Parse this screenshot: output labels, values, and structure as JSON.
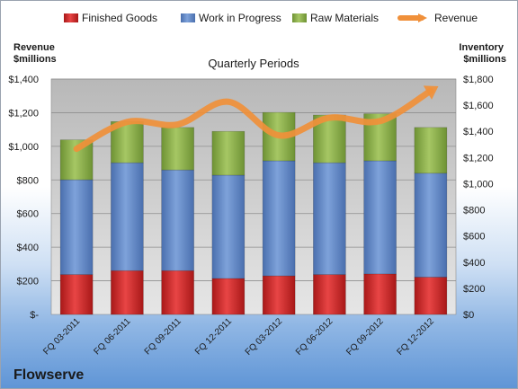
{
  "chart_data": {
    "type": "bar",
    "stacked": true,
    "title": "Quarterly Periods",
    "ylabel_left": "Revenue\n$millions",
    "ylabel_right": "Inventory\n$millions",
    "company": "Flowserve",
    "categories": [
      "FQ 03-2011",
      "FQ 06-2011",
      "FQ 09-2011",
      "FQ 12-2011",
      "FQ 03-2012",
      "FQ 06-2012",
      "FQ 09-2012",
      "FQ 12-2012"
    ],
    "ylim_left": [
      0,
      1400
    ],
    "ylim_right": [
      0,
      1800
    ],
    "left_ticks": [
      "$-",
      "$200",
      "$400",
      "$600",
      "$800",
      "$1,000",
      "$1,200",
      "$1,400"
    ],
    "right_ticks": [
      "$0",
      "$200",
      "$400",
      "$600",
      "$800",
      "$1,000",
      "$1,200",
      "$1,400",
      "$1,600",
      "$1,800"
    ],
    "grid": true,
    "legend_position": "top",
    "series": [
      {
        "name": "Finished Goods",
        "axis": "right",
        "color": "#d42a2a",
        "values": [
          305,
          335,
          335,
          275,
          295,
          305,
          310,
          285
        ]
      },
      {
        "name": "Work in Progress",
        "axis": "right",
        "color": "#5b84c4",
        "values": [
          725,
          825,
          770,
          790,
          880,
          855,
          865,
          795
        ]
      },
      {
        "name": "Raw Materials",
        "axis": "right",
        "color": "#8db14a",
        "values": [
          305,
          315,
          325,
          335,
          370,
          365,
          360,
          350
        ]
      },
      {
        "name": "Revenue",
        "type": "line",
        "axis": "left",
        "color": "#f0903a",
        "values": [
          985,
          1145,
          1130,
          1265,
          1065,
          1170,
          1150,
          1330
        ]
      }
    ]
  }
}
